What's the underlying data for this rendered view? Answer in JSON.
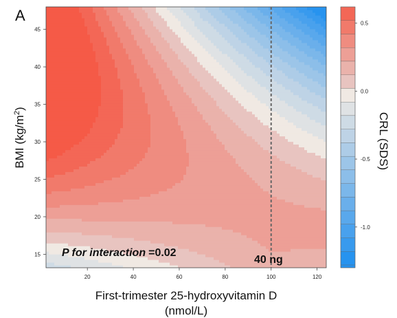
{
  "panel_label": "A",
  "annotation": {
    "prefix": "P for interaction",
    "value": "=0.02"
  },
  "vline_label": "40 ng",
  "chart_data": {
    "type": "heatmap",
    "subtype": "filled-contour",
    "xlabel_line1": "First-trimester 25-hydroxyvitamin D",
    "xlabel_line2": "(nmol/L)",
    "ylabel_main": "BMI (kg/m",
    "ylabel_sup": "2",
    "ylabel_end": ")",
    "colorbar_label": "CRL (SDS)",
    "xlim": [
      2,
      124
    ],
    "ylim": [
      13.2,
      48
    ],
    "xticks": [
      20,
      40,
      60,
      80,
      100,
      120
    ],
    "yticks": [
      15,
      20,
      25,
      30,
      35,
      40,
      45
    ],
    "colorbar_range": [
      -1.3,
      0.62
    ],
    "colorbar_ticks": [
      0.5,
      0.0,
      -0.5,
      -1.0
    ],
    "colorbar_tick_labels": [
      "0.5",
      "0.0",
      "-0.5",
      "-1.0"
    ],
    "level_step": 0.1,
    "vertical_line_x": 100,
    "grid": false,
    "colors": {
      "negative_max": "#1f8ff0",
      "neutral": "#e4e4e4",
      "positive_max": "#f55a47",
      "vline": "#666666"
    }
  }
}
